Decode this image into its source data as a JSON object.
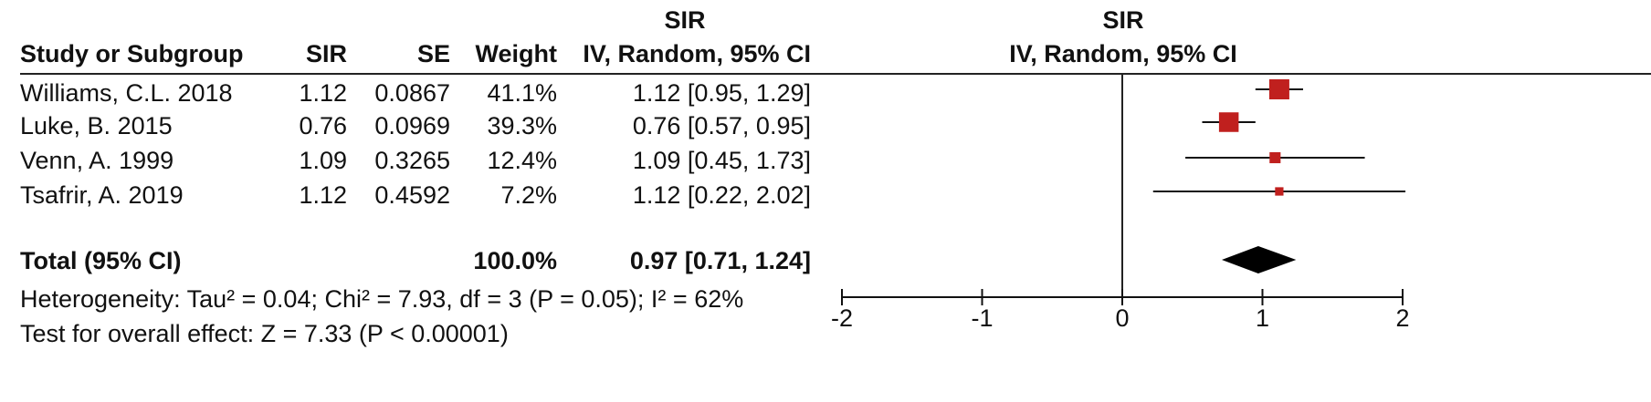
{
  "header": {
    "group_sir_left": "SIR",
    "group_sir_right": "SIR",
    "col_study": "Study or Subgroup",
    "col_sir": "SIR",
    "col_se": "SE",
    "col_weight": "Weight",
    "col_ci": "IV, Random, 95% CI",
    "col_plot": "IV, Random, 95% CI"
  },
  "studies": [
    {
      "name": "Williams, C.L. 2018",
      "sir": "1.12",
      "se": "0.0867",
      "weight": "41.1%",
      "ci": "1.12 [0.95, 1.29]"
    },
    {
      "name": "Luke, B. 2015",
      "sir": "0.76",
      "se": "0.0969",
      "weight": "39.3%",
      "ci": "0.76 [0.57, 0.95]"
    },
    {
      "name": "Venn, A. 1999",
      "sir": "1.09",
      "se": "0.3265",
      "weight": "12.4%",
      "ci": "1.09 [0.45, 1.73]"
    },
    {
      "name": "Tsafrir, A. 2019",
      "sir": "1.12",
      "se": "0.4592",
      "weight": "7.2%",
      "ci": "1.12 [0.22, 2.02]"
    }
  ],
  "total": {
    "label": "Total (95% CI)",
    "weight": "100.0%",
    "ci": "0.97 [0.71, 1.24]"
  },
  "footer": {
    "heterogeneity": "Heterogeneity: Tau² = 0.04; Chi² = 7.93, df = 3 (P = 0.05); I² = 62%",
    "overall": "Test for overall effect: Z = 7.33 (P < 0.00001)"
  },
  "chart_data": {
    "type": "forest",
    "xlim": [
      -2,
      2
    ],
    "ticks": [
      "-2",
      "-1",
      "0",
      "1",
      "2"
    ],
    "tick_values": [
      -2,
      -1,
      0,
      1,
      2
    ],
    "null_line": 0,
    "marker_color": "#c0201e",
    "studies": [
      {
        "est": 1.12,
        "lo": 0.95,
        "hi": 1.29,
        "weight": 41.1
      },
      {
        "est": 0.76,
        "lo": 0.57,
        "hi": 0.95,
        "weight": 39.3
      },
      {
        "est": 1.09,
        "lo": 0.45,
        "hi": 1.73,
        "weight": 12.4
      },
      {
        "est": 1.12,
        "lo": 0.22,
        "hi": 2.02,
        "weight": 7.2
      }
    ],
    "pooled": {
      "est": 0.97,
      "lo": 0.71,
      "hi": 1.24
    }
  }
}
